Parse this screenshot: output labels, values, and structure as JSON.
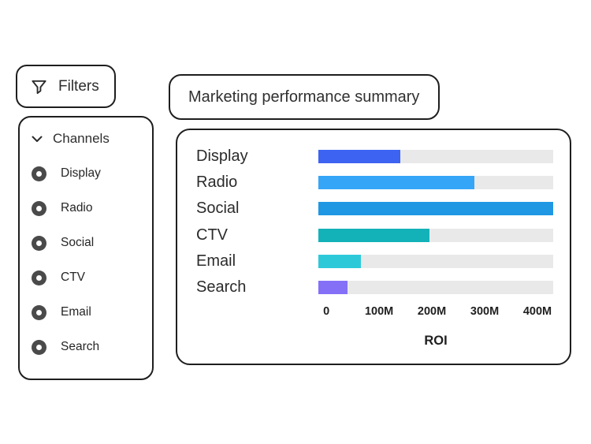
{
  "filters_button": {
    "label": "Filters",
    "icon": "funnel-icon"
  },
  "channels_panel": {
    "header": "Channels",
    "collapse_icon": "chevron-down-icon",
    "items": [
      {
        "label": "Display",
        "selected": true
      },
      {
        "label": "Radio",
        "selected": true
      },
      {
        "label": "Social",
        "selected": true
      },
      {
        "label": "CTV",
        "selected": true
      },
      {
        "label": "Email",
        "selected": true
      },
      {
        "label": "Search",
        "selected": true
      }
    ]
  },
  "title_card": {
    "title": "Marketing performance summary"
  },
  "chart_data": {
    "type": "bar",
    "orientation": "horizontal",
    "title": "Marketing performance summary",
    "categories": [
      "Display",
      "Radio",
      "Social",
      "CTV",
      "Email",
      "Search"
    ],
    "values": [
      155,
      295,
      445,
      210,
      80,
      55
    ],
    "unit": "M",
    "xlabel": "ROI",
    "xlim": [
      0,
      445
    ],
    "ticks": [
      {
        "value": 0,
        "label": "0"
      },
      {
        "value": 100,
        "label": "100M"
      },
      {
        "value": 200,
        "label": "200M"
      },
      {
        "value": 300,
        "label": "300M"
      },
      {
        "value": 400,
        "label": "400M"
      }
    ],
    "tick_offset_pct": 3.4,
    "grid": false,
    "legend": false,
    "bar_colors": [
      "#3d63f2",
      "#35a5f7",
      "#1f97e3",
      "#13b2b9",
      "#2dc9d9",
      "#8370f7"
    ],
    "track_color": "#e9e9e9"
  },
  "colors": {
    "border_ink": "#1e1e1e",
    "text": "#2e2e2e",
    "radio_fill": "#4a4a4a",
    "background": "#ffffff"
  }
}
